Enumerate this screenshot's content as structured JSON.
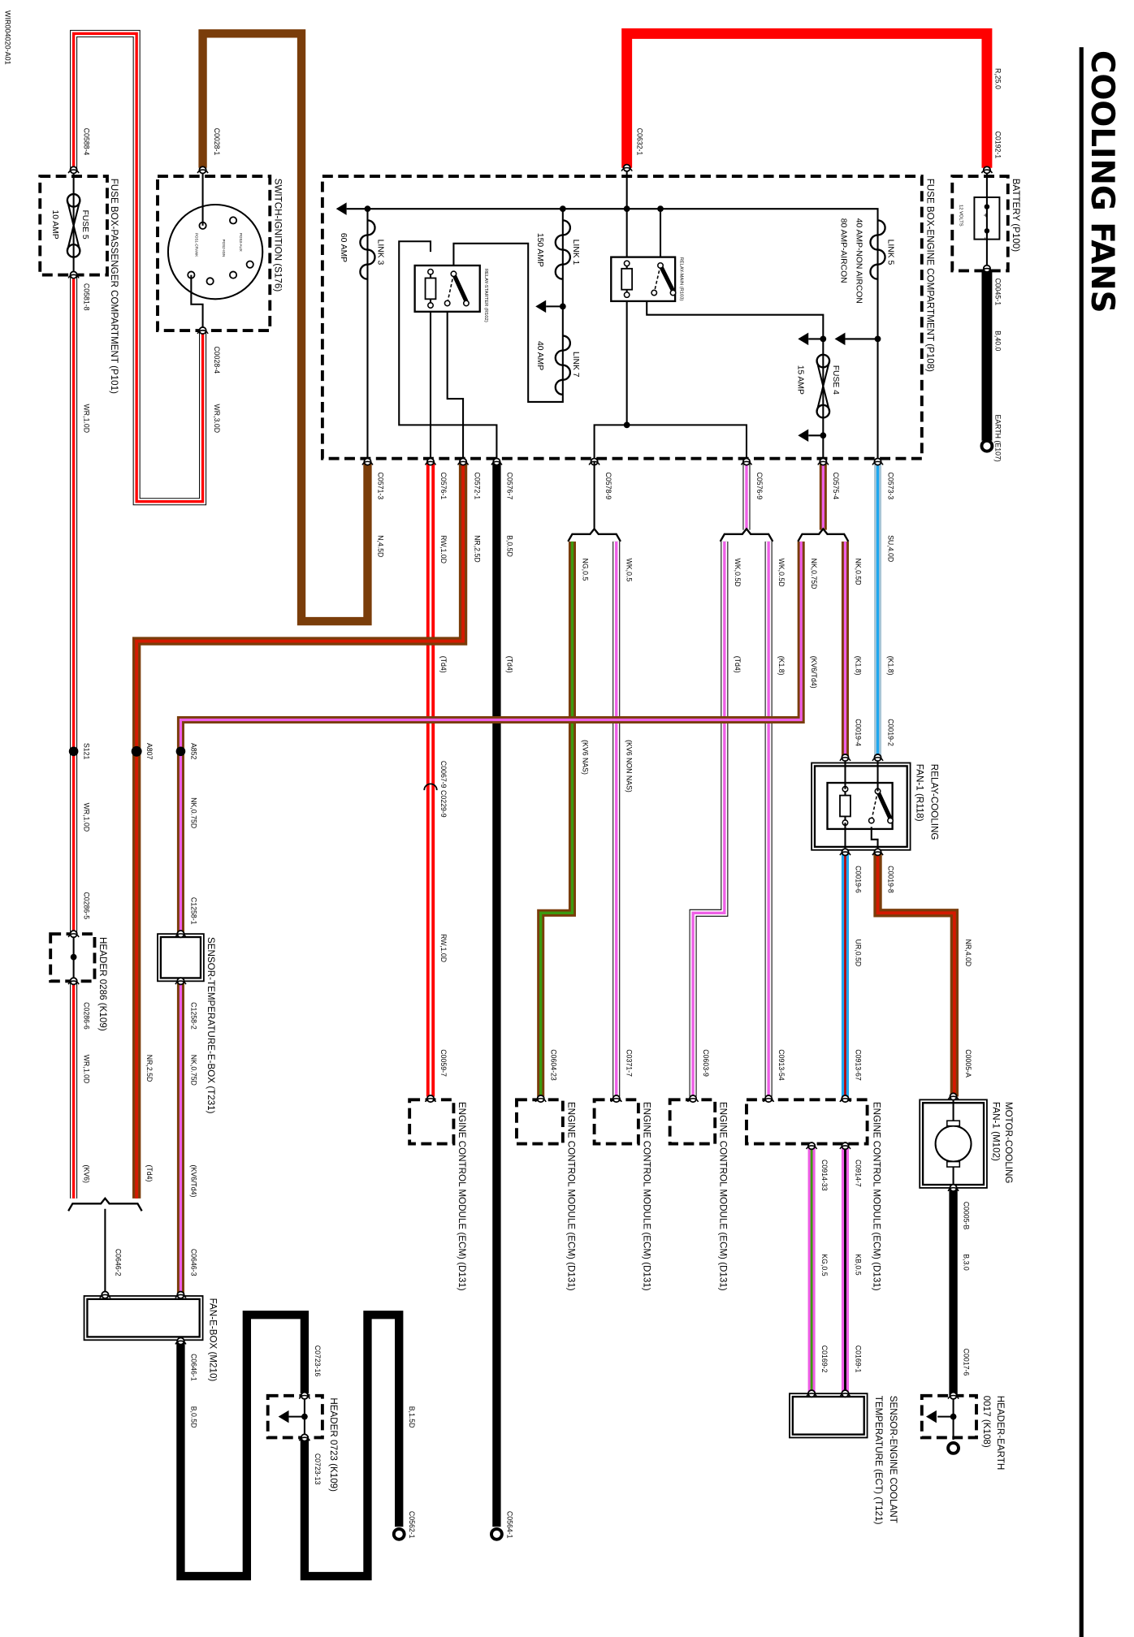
{
  "title": "COOLING FANS",
  "doc_id": "WIR004020-A01",
  "components": {
    "battery": "BATTERY (P100)",
    "battery_volts": "12 VOLTS",
    "earth_e107": "EARTH (E107)",
    "fusebox_engine": "FUSE BOX-ENGINE COMPARTMENT (P108)",
    "fusebox_passenger": "FUSE BOX-PASSENGER COMPARTMENT (P101)",
    "switch_ignition": "SWITCH-IGNITION (S176)",
    "relay_starter": "RELAY-STARTER (R102)",
    "relay_main": "RELAY-MAIN (R103)",
    "relay_cooling_1": "RELAY-COOLING",
    "relay_cooling_2": "FAN-1 (R118)",
    "motor_cooling_1": "MOTOR-COOLING",
    "motor_cooling_2": "FAN-1 (M102)",
    "header_earth_1": "HEADER-EARTH",
    "header_earth_2": "0017 (K108)",
    "ecm_1": "ENGINE CONTROL MODULE (ECM) (D131)",
    "ecm_2": "ENGINE CONTROL MODULE (ECM) (D131)",
    "ecm_3": "ENGINE CONTROL MODULE (ECM) (D131)",
    "ecm_4": "ENGINE CONTROL MODULE (ECM) (D131)",
    "ecm_5": "ENGINE CONTROL MODULE (ECM) (D131)",
    "sensor_ect_1": "SENSOR-ENGINE COOLANT",
    "sensor_ect_2": "TEMPERATURE (ECT) (T121)",
    "sensor_ebox": "SENSOR-TEMPERATURE-E-BOX (T231)",
    "header_0286": "HEADER 0286 (K109)",
    "fan_ebox": "FAN-E-BOX (M210)",
    "header_0723": "HEADER 0723 (K109)"
  },
  "ignition_terminals": [
    "POS3-AUX",
    "POS2-IGN",
    "POS1-CRANK"
  ],
  "fuses": {
    "link3": "LINK 3",
    "link3_rating": "60 AMP",
    "link1": "LINK 1",
    "link1_rating": "150 AMP",
    "link7": "LINK 7",
    "link7_rating": "40 AMP",
    "link5": "LINK 5",
    "link5_rating_a": "40 AMP-NON AIRCON",
    "link5_rating_b": "80 AMP-AIRCON",
    "fuse4": "FUSE 4",
    "fuse4_rating": "15 AMP",
    "fuse5": "FUSE 5",
    "fuse5_rating": "10 AMP"
  },
  "connectors": {
    "c0192_1": "C0192-1",
    "c0045_1": "C0045-1",
    "c0632_1": "C0632-1",
    "c0588_4": "C0588-4",
    "c0581_8": "C0581-8",
    "c0028_1": "C0028-1",
    "c0028_4": "C0028-4",
    "c0571_3": "C0571-3",
    "c0576_1": "C0576-1",
    "c0572_1": "C0572-1",
    "c0576_7": "C0576-7",
    "c0578_9": "C0578-9",
    "c0576_9": "C0576-9",
    "c0575_4": "C0575-4",
    "c0573_3": "C0573-3",
    "c0019_4": "C0019-4",
    "c0019_2": "C0019-2",
    "c0019_6": "C0019-6",
    "c0019_8": "C0019-8",
    "c0067_c0229": "C0067-9 C0229-9",
    "c0059_7": "C0059-7",
    "c0604_23": "C0604-23",
    "c0371_7": "C0371-7",
    "c0603_9": "C0603-9",
    "c0913_54": "C0913-54",
    "c0913_67": "C0913-67",
    "c0005_a": "C0005-A",
    "c0005_b": "C0005-B",
    "c0017_6": "C0017-6",
    "c0914_7": "C0914-7",
    "c0914_33": "C0914-33",
    "c0169_1": "C0169-1",
    "c0169_2": "C0169-2",
    "s121": "S121",
    "a807": "A807",
    "a852": "A852",
    "c0286_5": "C0286-5",
    "c0286_6": "C0286-6",
    "c1258_1": "C1258-1",
    "c1258_2": "C1258-2",
    "c0646_2": "C0646-2",
    "c0646_3": "C0646-3",
    "c0646_1": "C0646-1",
    "c0723_16": "C0723-16",
    "c0723_13": "C0723-13",
    "c0562_1": "C0562-1",
    "c0564_1": "C0564-1"
  },
  "wires": {
    "r250": "R,25.0",
    "b400": "B,40.0",
    "wr10_a": "WR,1.0D",
    "wr30": "WR,3.0D",
    "n45": "N,4.5D",
    "rw10_a": "RW,1.0D",
    "nr25_a": "NR,2.5D",
    "b05_a": "B,0.5D",
    "ng05": "NG,0.5",
    "wk05": "WK,0.5",
    "wk05d_a": "WK,0.5D",
    "wk05d_b": "WK,0.5D",
    "nk075_a": "NK,0.75D",
    "nk05": "NK,0.5D",
    "su40": "SU,4.0D",
    "rw10_b": "RW,1.0D",
    "ur05": "UR,0.5D",
    "nr40": "NR,4.0D",
    "b30": "B,3.0",
    "kb05": "KB,0.5",
    "kg05": "KG,0.5",
    "wr10_b": "WR,1.0D",
    "wr10_c": "WR,1.0D",
    "nr25_b": "NR,2.5D",
    "nk075_b": "NK,0.75D",
    "nk075_c": "NK,0.75D",
    "b05_b": "B,0.5D",
    "b15": "B,1.5D"
  },
  "variants": {
    "td4_a": "(Td4)",
    "td4_b": "(Td4)",
    "td4_c": "(Td4)",
    "k18_a": "(K1.8)",
    "kv6td4_a": "(KV6/Td4)",
    "k18_b": "(K1.8)",
    "k18_c": "(K1.8)",
    "kv6nas": "(KV6 NAS)",
    "kv6nonnas": "(KV6 NON NAS)",
    "kv6": "(KV6)",
    "td4_d": "(Td4)",
    "kv6td4_b": "(KV6/Td4)"
  },
  "colors": {
    "brown": "#7a3d0a",
    "red": "#ff0000",
    "pink": "#ee5fe6",
    "blue": "#1ea7ef",
    "slate": "#a9c6d6",
    "green": "#3c9a10",
    "black": "#000000"
  }
}
